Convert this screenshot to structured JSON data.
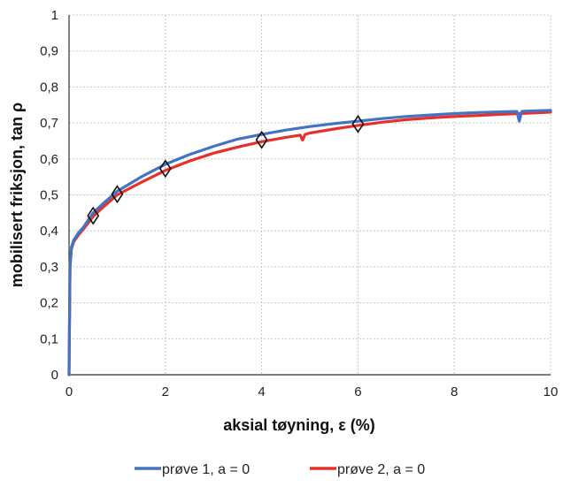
{
  "chart_data": {
    "type": "line",
    "xlabel": "aksial tøyning, ε (%)",
    "ylabel": "mobilisert friksjon, tan ρ",
    "xlim": [
      0,
      10
    ],
    "ylim": [
      0,
      1
    ],
    "xticks": [
      0,
      2,
      4,
      6,
      8,
      10
    ],
    "yticks": [
      0,
      0.1,
      0.2,
      0.3,
      0.4,
      0.5,
      0.6,
      0.7,
      0.8,
      0.9,
      1
    ],
    "xtick_labels": [
      "0",
      "2",
      "4",
      "6",
      "8",
      "10"
    ],
    "ytick_labels": [
      "0",
      "0,1",
      "0,2",
      "0,3",
      "0,4",
      "0,5",
      "0,6",
      "0,7",
      "0,8",
      "0,9",
      "1"
    ],
    "grid": true,
    "legend_position": "bottom",
    "series": [
      {
        "name": "prøve 1, a = 0",
        "color": "#4472c4",
        "x": [
          0,
          0.02,
          0.05,
          0.1,
          0.2,
          0.3,
          0.5,
          0.7,
          1.0,
          1.5,
          2.0,
          2.5,
          3.0,
          3.5,
          4.0,
          4.5,
          5.0,
          5.5,
          6.0,
          6.5,
          7.0,
          7.5,
          8.0,
          8.5,
          9.0,
          9.3,
          9.35,
          9.4,
          9.5,
          10.0
        ],
        "y": [
          0,
          0.3,
          0.355,
          0.375,
          0.395,
          0.41,
          0.45,
          0.475,
          0.51,
          0.55,
          0.585,
          0.612,
          0.635,
          0.655,
          0.668,
          0.68,
          0.69,
          0.698,
          0.705,
          0.712,
          0.718,
          0.722,
          0.726,
          0.729,
          0.731,
          0.732,
          0.705,
          0.732,
          0.733,
          0.735
        ]
      },
      {
        "name": "prøve 2, a = 0",
        "color": "#e8302a",
        "x": [
          0,
          0.02,
          0.05,
          0.1,
          0.2,
          0.3,
          0.5,
          0.7,
          1.0,
          1.5,
          2.0,
          2.5,
          3.0,
          3.5,
          4.0,
          4.5,
          4.8,
          4.85,
          4.9,
          5.0,
          5.5,
          6.0,
          6.5,
          7.0,
          7.5,
          8.0,
          8.5,
          9.0,
          9.5,
          10.0
        ],
        "y": [
          0,
          0.3,
          0.35,
          0.37,
          0.39,
          0.405,
          0.44,
          0.465,
          0.5,
          0.535,
          0.568,
          0.594,
          0.616,
          0.633,
          0.648,
          0.66,
          0.666,
          0.652,
          0.668,
          0.672,
          0.683,
          0.693,
          0.702,
          0.709,
          0.714,
          0.718,
          0.721,
          0.724,
          0.727,
          0.73
        ]
      }
    ],
    "markers": [
      {
        "x": 0.5,
        "y": 0.442
      },
      {
        "x": 1.0,
        "y": 0.502
      },
      {
        "x": 2.0,
        "y": 0.573
      },
      {
        "x": 4.0,
        "y": 0.653
      },
      {
        "x": 6.0,
        "y": 0.697
      }
    ]
  }
}
